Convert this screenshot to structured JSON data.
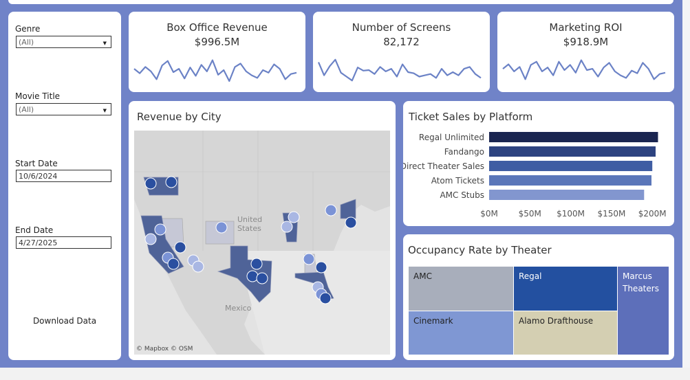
{
  "filters": {
    "genre": {
      "label": "Genre",
      "value": "(All)"
    },
    "movie_title": {
      "label": "Movie Title",
      "value": "(All)"
    },
    "start_date": {
      "label": "Start Date",
      "value": "10/6/2024"
    },
    "end_date": {
      "label": "End Date",
      "value": "4/27/2025"
    },
    "download_label": "Download Data"
  },
  "kpis": [
    {
      "title": "Box Office Revenue",
      "value": "$996.5M",
      "spark": [
        0.55,
        0.38,
        0.62,
        0.45,
        0.15,
        0.68,
        0.85,
        0.42,
        0.55,
        0.18,
        0.6,
        0.28,
        0.7,
        0.45,
        0.88,
        0.32,
        0.5,
        0.08,
        0.62,
        0.75,
        0.45,
        0.3,
        0.2,
        0.5,
        0.4,
        0.72,
        0.55,
        0.15,
        0.35,
        0.4
      ]
    },
    {
      "title": "Number of Screens",
      "value": "82,172",
      "spark": [
        0.8,
        0.3,
        0.65,
        0.9,
        0.4,
        0.25,
        0.1,
        0.6,
        0.48,
        0.5,
        0.35,
        0.62,
        0.45,
        0.55,
        0.25,
        0.72,
        0.42,
        0.38,
        0.25,
        0.3,
        0.35,
        0.2,
        0.55,
        0.3,
        0.42,
        0.3,
        0.55,
        0.62,
        0.35,
        0.2
      ]
    },
    {
      "title": "Marketing ROI",
      "value": "$918.9M",
      "spark": [
        0.55,
        0.72,
        0.45,
        0.62,
        0.15,
        0.7,
        0.82,
        0.45,
        0.6,
        0.3,
        0.82,
        0.5,
        0.7,
        0.4,
        0.88,
        0.5,
        0.55,
        0.25,
        0.6,
        0.78,
        0.45,
        0.3,
        0.2,
        0.48,
        0.38,
        0.78,
        0.55,
        0.15,
        0.35,
        0.4
      ]
    }
  ],
  "map": {
    "title": "Revenue by City",
    "country_label_1": "United",
    "country_label_2": "States",
    "mexico_label": "Mexico",
    "attribution": "© Mapbox  © OSM"
  },
  "ticket_sales": {
    "title": "Ticket Sales by Platform",
    "chart_data": {
      "type": "bar",
      "categories": [
        "Regal Unlimited",
        "Fandango",
        "Direct Theater Sales",
        "Atom Tickets",
        "AMC Stubs"
      ],
      "values": [
        207,
        204,
        200,
        199,
        190
      ],
      "ticks": [
        "$0M",
        "$50M",
        "$100M",
        "$150M",
        "$200M"
      ],
      "tick_values": [
        0,
        50,
        100,
        150,
        200
      ],
      "xlim": [
        0,
        215
      ],
      "colors": [
        "#1a2550",
        "#2d4380",
        "#3f5da3",
        "#5a76b9",
        "#8296cf"
      ]
    }
  },
  "occupancy": {
    "title": "Occupancy Rate by Theater",
    "tiles": [
      {
        "label": "AMC",
        "color": "#a8aebb",
        "text_color": "#222"
      },
      {
        "label": "Regal",
        "color": "#2350a0",
        "text_color": "#ffffff"
      },
      {
        "label": "Marcus Theaters",
        "color": "#5d6fba",
        "text_color": "#ffffff"
      },
      {
        "label": "Cinemark",
        "color": "#7f97d3",
        "text_color": "#222"
      },
      {
        "label": "Alamo Drafthouse",
        "color": "#d4cfb2",
        "text_color": "#222"
      }
    ]
  },
  "colors": {
    "frame": "#7083c8",
    "line": "#6b82c6",
    "state_dark": "#4f6398",
    "state_light": "#c6c8d6"
  }
}
